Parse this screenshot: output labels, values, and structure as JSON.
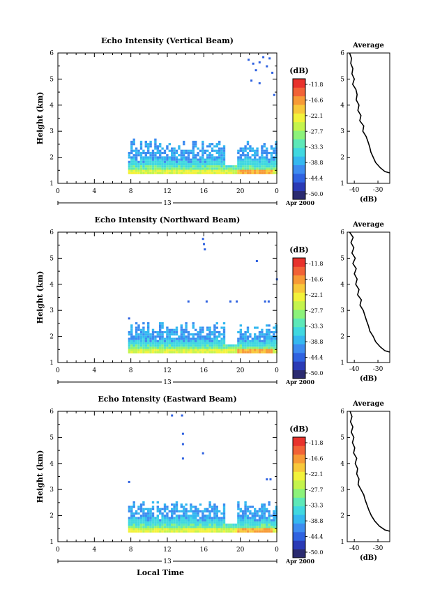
{
  "figure": {
    "shared_xlabel": "Local Time",
    "colorbar_unit": "(dB)",
    "colorbar_labels": [
      "-11.8",
      "-16.6",
      "-22.1",
      "-27.7",
      "-33.3",
      "-38.8",
      "-44.4",
      "-50.0"
    ],
    "colorscale": [
      "#2b2b70",
      "#2a3ab5",
      "#2f62e0",
      "#3d8cf0",
      "#35b8f0",
      "#40d8e0",
      "#5de8b8",
      "#8cf27a",
      "#c4f44c",
      "#f2f23a",
      "#f8c83a",
      "#f79a36",
      "#f26236",
      "#e8322c"
    ]
  },
  "chart_data": [
    {
      "type": "heatmap",
      "title": "Echo Intensity (Vertical Beam)",
      "xlabel": "",
      "ylabel": "Height (km)",
      "xticks": [
        "0",
        "4",
        "8",
        "12",
        "16",
        "20",
        "0"
      ],
      "yticks": [
        "1",
        "2",
        "3",
        "4",
        "5",
        "6"
      ],
      "xlim": [
        0,
        24
      ],
      "ylim": [
        1,
        6
      ],
      "date_label": "13",
      "month_label": "Apr 2000",
      "echo_layer": {
        "x_start": 7.7,
        "x_end": 24,
        "y_bottom": 1.35,
        "y_top_range": [
          2.2,
          2.65
        ]
      },
      "sparse_echoes": [
        [
          20.8,
          5.7
        ],
        [
          21.3,
          5.55
        ],
        [
          21.6,
          5.3
        ],
        [
          22.0,
          5.6
        ],
        [
          22.4,
          5.8
        ],
        [
          22.8,
          5.45
        ],
        [
          23.1,
          5.75
        ],
        [
          23.4,
          5.2
        ],
        [
          23.6,
          4.35
        ],
        [
          21.1,
          4.9
        ],
        [
          22.0,
          4.8
        ]
      ],
      "profile": {
        "title": "Average",
        "xlabel": "(dB)",
        "xticks": [
          "-40",
          "-30"
        ],
        "yticks": [
          "1",
          "2",
          "3",
          "4",
          "5",
          "6"
        ],
        "xlim": [
          -43,
          -25
        ],
        "points": [
          [
            -42.0,
            6.0
          ],
          [
            -41.2,
            5.8
          ],
          [
            -41.5,
            5.6
          ],
          [
            -40.6,
            5.4
          ],
          [
            -41.0,
            5.2
          ],
          [
            -40.0,
            5.0
          ],
          [
            -40.7,
            4.8
          ],
          [
            -39.3,
            4.6
          ],
          [
            -38.8,
            4.4
          ],
          [
            -39.2,
            4.2
          ],
          [
            -38.0,
            4.0
          ],
          [
            -38.5,
            3.8
          ],
          [
            -37.2,
            3.6
          ],
          [
            -37.7,
            3.4
          ],
          [
            -36.0,
            3.2
          ],
          [
            -36.4,
            3.0
          ],
          [
            -35.0,
            2.8
          ],
          [
            -34.2,
            2.6
          ],
          [
            -33.5,
            2.4
          ],
          [
            -33.0,
            2.2
          ],
          [
            -32.0,
            2.0
          ],
          [
            -31.0,
            1.8
          ],
          [
            -29.0,
            1.6
          ],
          [
            -27.0,
            1.45
          ],
          [
            -25.0,
            1.4
          ]
        ]
      }
    },
    {
      "type": "heatmap",
      "title": "Echo Intensity (Northward Beam)",
      "xlabel": "",
      "ylabel": "Height (km)",
      "xticks": [
        "0",
        "4",
        "8",
        "12",
        "16",
        "20",
        "0"
      ],
      "yticks": [
        "1",
        "2",
        "3",
        "4",
        "5",
        "6"
      ],
      "xlim": [
        0,
        24
      ],
      "ylim": [
        1,
        6
      ],
      "date_label": "13",
      "month_label": "Apr 2000",
      "echo_layer": {
        "x_start": 7.7,
        "x_end": 24,
        "y_bottom": 1.35,
        "y_top_range": [
          2.1,
          2.5
        ]
      },
      "sparse_echoes": [
        [
          15.8,
          5.7
        ],
        [
          15.9,
          5.5
        ],
        [
          16.0,
          5.3
        ],
        [
          21.7,
          4.85
        ],
        [
          23.9,
          4.15
        ],
        [
          14.2,
          3.3
        ],
        [
          16.2,
          3.3
        ],
        [
          18.8,
          3.3
        ],
        [
          19.5,
          3.3
        ],
        [
          22.6,
          3.3
        ],
        [
          23.0,
          3.3
        ],
        [
          7.7,
          2.65
        ]
      ],
      "profile": {
        "title": "Average",
        "xlabel": "(dB)",
        "xticks": [
          "-40",
          "-30"
        ],
        "yticks": [
          "1",
          "2",
          "3",
          "4",
          "5",
          "6"
        ],
        "xlim": [
          -43,
          -25
        ],
        "points": [
          [
            -42.0,
            6.0
          ],
          [
            -40.5,
            5.8
          ],
          [
            -41.4,
            5.6
          ],
          [
            -40.2,
            5.4
          ],
          [
            -41.0,
            5.2
          ],
          [
            -39.6,
            5.0
          ],
          [
            -40.6,
            4.8
          ],
          [
            -39.2,
            4.6
          ],
          [
            -40.0,
            4.4
          ],
          [
            -38.8,
            4.2
          ],
          [
            -39.4,
            4.0
          ],
          [
            -38.0,
            3.8
          ],
          [
            -38.6,
            3.6
          ],
          [
            -37.0,
            3.4
          ],
          [
            -37.6,
            3.2
          ],
          [
            -36.2,
            3.0
          ],
          [
            -35.5,
            2.8
          ],
          [
            -34.8,
            2.6
          ],
          [
            -34.0,
            2.4
          ],
          [
            -33.4,
            2.2
          ],
          [
            -32.0,
            2.0
          ],
          [
            -31.0,
            1.8
          ],
          [
            -29.0,
            1.6
          ],
          [
            -27.0,
            1.45
          ],
          [
            -25.0,
            1.4
          ]
        ]
      }
    },
    {
      "type": "heatmap",
      "title": "Echo Intensity (Eastward Beam)",
      "xlabel": "",
      "ylabel": "Height (km)",
      "xticks": [
        "0",
        "4",
        "8",
        "12",
        "16",
        "20",
        "0"
      ],
      "yticks": [
        "1",
        "2",
        "3",
        "4",
        "5",
        "6"
      ],
      "xlim": [
        0,
        24
      ],
      "ylim": [
        1,
        6
      ],
      "date_label": "13",
      "month_label": "Apr 2000",
      "echo_layer": {
        "x_start": 7.7,
        "x_end": 24,
        "y_bottom": 1.35,
        "y_top_range": [
          2.15,
          2.55
        ]
      },
      "sparse_echoes": [
        [
          12.4,
          5.8
        ],
        [
          13.5,
          5.8
        ],
        [
          13.6,
          5.1
        ],
        [
          13.6,
          4.7
        ],
        [
          13.6,
          4.15
        ],
        [
          15.8,
          4.35
        ],
        [
          22.8,
          3.35
        ],
        [
          23.2,
          3.35
        ],
        [
          7.7,
          3.25
        ]
      ],
      "profile": {
        "title": "Average",
        "xlabel": "(dB)",
        "xticks": [
          "-40",
          "-30"
        ],
        "yticks": [
          "1",
          "2",
          "3",
          "4",
          "5",
          "6"
        ],
        "xlim": [
          -43,
          -25
        ],
        "points": [
          [
            -41.8,
            6.0
          ],
          [
            -41.0,
            5.8
          ],
          [
            -41.6,
            5.6
          ],
          [
            -40.6,
            5.4
          ],
          [
            -41.3,
            5.2
          ],
          [
            -40.2,
            5.0
          ],
          [
            -40.8,
            4.8
          ],
          [
            -39.8,
            4.6
          ],
          [
            -40.3,
            4.4
          ],
          [
            -39.0,
            4.2
          ],
          [
            -39.6,
            4.0
          ],
          [
            -38.6,
            3.8
          ],
          [
            -39.0,
            3.6
          ],
          [
            -38.0,
            3.4
          ],
          [
            -38.4,
            3.2
          ],
          [
            -37.2,
            3.0
          ],
          [
            -36.0,
            2.8
          ],
          [
            -35.4,
            2.6
          ],
          [
            -34.6,
            2.4
          ],
          [
            -33.8,
            2.2
          ],
          [
            -32.8,
            2.0
          ],
          [
            -31.4,
            1.8
          ],
          [
            -29.4,
            1.6
          ],
          [
            -27.0,
            1.45
          ],
          [
            -25.0,
            1.4
          ]
        ]
      }
    }
  ]
}
